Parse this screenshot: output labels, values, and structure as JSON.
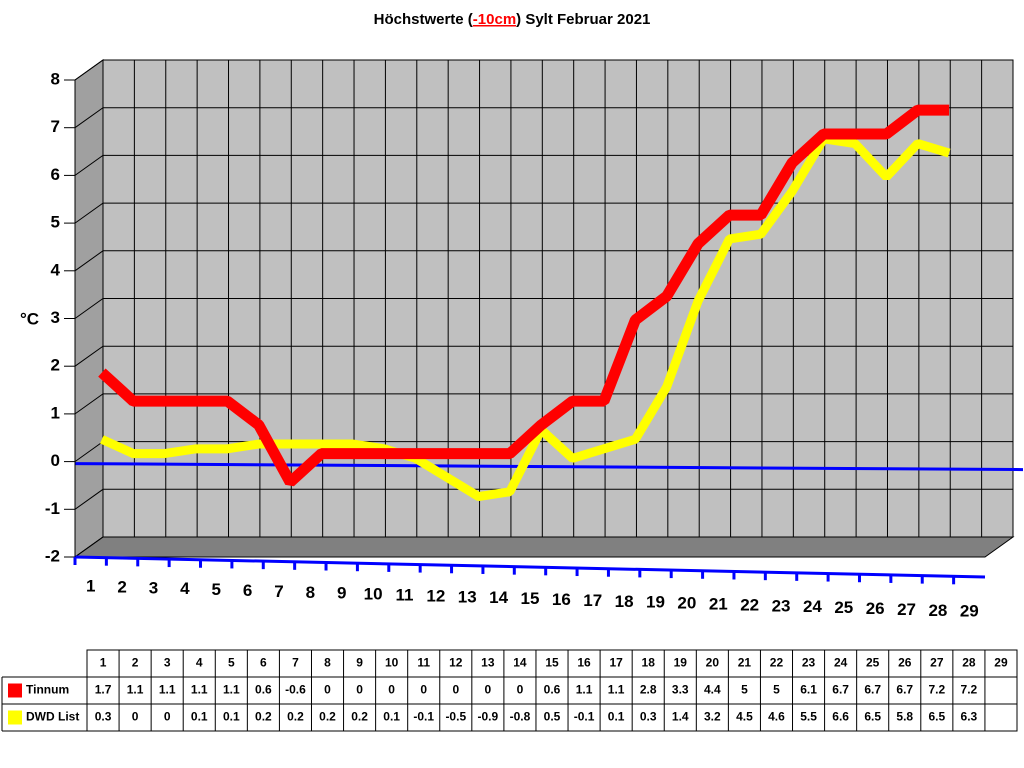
{
  "chart_data": {
    "type": "line3d",
    "title": [
      "Höchstwerte (",
      "-10cm",
      ") Sylt Februar 2021"
    ],
    "ylabel": "°C",
    "categories": [
      "1",
      "2",
      "3",
      "4",
      "5",
      "6",
      "7",
      "8",
      "9",
      "10",
      "11",
      "12",
      "13",
      "14",
      "15",
      "16",
      "17",
      "18",
      "19",
      "20",
      "21",
      "22",
      "23",
      "24",
      "25",
      "26",
      "27",
      "28",
      "29"
    ],
    "ylim": [
      -2,
      8
    ],
    "yticks": [
      -2,
      -1,
      0,
      1,
      2,
      3,
      4,
      5,
      6,
      7,
      8
    ],
    "grid": true,
    "series": [
      {
        "name": "Tinnum",
        "color": "#ff0000",
        "values": [
          1.7,
          1.1,
          1.1,
          1.1,
          1.1,
          0.6,
          -0.6,
          0,
          0,
          0,
          0,
          0,
          0,
          0,
          0.6,
          1.1,
          1.1,
          2.8,
          3.3,
          4.4,
          5,
          5,
          6.1,
          6.7,
          6.7,
          6.7,
          7.2,
          7.2,
          null
        ]
      },
      {
        "name": "DWD List",
        "color": "#ffff00",
        "values": [
          0.3,
          0,
          0,
          0.1,
          0.1,
          0.2,
          0.2,
          0.2,
          0.2,
          0.1,
          -0.1,
          -0.5,
          -0.9,
          -0.8,
          0.5,
          -0.1,
          0.1,
          0.3,
          1.4,
          3.2,
          4.5,
          4.6,
          5.5,
          6.6,
          6.5,
          5.8,
          6.5,
          6.3,
          null
        ]
      }
    ]
  }
}
